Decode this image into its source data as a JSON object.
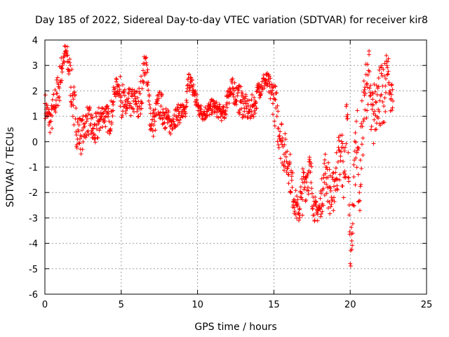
{
  "chart_data": {
    "type": "scatter",
    "title": "Day 185 of 2022, Sidereal Day-to-day VTEC variation (SDTVAR) for receiver kir8",
    "xlabel": "GPS time / hours",
    "ylabel": "SDTVAR / TECUs",
    "xlim": [
      0,
      25
    ],
    "ylim": [
      -6,
      4
    ],
    "xticks": [
      0,
      5,
      10,
      15,
      20,
      25
    ],
    "yticks": [
      -6,
      -5,
      -4,
      -3,
      -2,
      -1,
      0,
      1,
      2,
      3,
      4
    ],
    "grid": true,
    "marker": "+",
    "color": "#ff0000",
    "series": [
      {
        "name": "SDTVAR",
        "x": [
          0.0,
          0.2,
          0.4,
          0.6,
          0.8,
          1.0,
          1.2,
          1.4,
          1.6,
          1.8,
          2.0,
          2.2,
          2.4,
          2.6,
          2.8,
          3.0,
          3.2,
          3.4,
          3.6,
          3.8,
          4.0,
          4.2,
          4.4,
          4.6,
          4.8,
          5.0,
          5.2,
          5.4,
          5.6,
          5.8,
          6.0,
          6.2,
          6.4,
          6.6,
          6.8,
          7.0,
          7.2,
          7.4,
          7.6,
          7.8,
          8.0,
          8.2,
          8.4,
          8.6,
          8.8,
          9.0,
          9.2,
          9.4,
          9.6,
          9.8,
          10.0,
          10.2,
          10.4,
          10.6,
          10.8,
          11.0,
          11.2,
          11.4,
          11.6,
          11.8,
          12.0,
          12.2,
          12.4,
          12.6,
          12.8,
          13.0,
          13.2,
          13.4,
          13.6,
          13.8,
          14.0,
          14.2,
          14.4,
          14.6,
          14.8,
          15.0,
          15.2,
          15.4,
          15.6,
          15.8,
          16.0,
          16.2,
          16.4,
          16.6,
          16.8,
          17.0,
          17.2,
          17.4,
          17.6,
          17.8,
          18.0,
          18.2,
          18.4,
          18.6,
          18.8,
          19.0,
          19.2,
          19.4,
          19.6,
          19.8,
          20.0,
          20.2,
          20.4,
          20.6,
          20.8,
          21.0,
          21.2,
          21.4,
          21.6,
          21.8,
          22.0,
          22.2,
          22.4,
          22.6,
          22.8
        ],
        "y": [
          1.5,
          1.0,
          0.8,
          1.4,
          1.9,
          2.4,
          3.3,
          3.5,
          2.8,
          1.8,
          0.9,
          0.4,
          0.2,
          0.6,
          0.9,
          0.7,
          0.3,
          0.5,
          0.9,
          1.1,
          1.0,
          0.8,
          1.2,
          2.1,
          2.2,
          1.8,
          1.4,
          1.3,
          1.5,
          1.6,
          1.5,
          1.4,
          2.4,
          3.3,
          1.6,
          0.7,
          0.8,
          1.5,
          1.4,
          1.1,
          0.9,
          0.6,
          0.9,
          1.0,
          1.1,
          1.2,
          1.0,
          2.5,
          2.2,
          1.9,
          1.4,
          1.2,
          1.1,
          1.2,
          1.3,
          1.4,
          1.3,
          1.2,
          1.1,
          1.1,
          2.0,
          1.9,
          2.0,
          1.8,
          1.6,
          1.5,
          1.3,
          1.2,
          1.4,
          1.5,
          2.1,
          2.2,
          2.4,
          2.3,
          2.0,
          1.7,
          1.0,
          0.4,
          -0.2,
          -0.6,
          -0.9,
          -1.8,
          -2.4,
          -2.8,
          -2.2,
          -1.6,
          -1.3,
          -1.2,
          -2.5,
          -2.8,
          -2.6,
          -1.9,
          -1.0,
          -1.8,
          -2.3,
          -1.5,
          -0.8,
          -0.4,
          -1.4,
          0.9,
          -4.8,
          -2.5,
          0.8,
          -2.0,
          0.6,
          1.9,
          2.8,
          0.6,
          1.2,
          2.1,
          1.8,
          1.4,
          3.0,
          2.0,
          1.6
        ],
        "y_spread": [
          0.5,
          0.5,
          0.6,
          0.7,
          0.7,
          0.8,
          0.5,
          0.4,
          0.8,
          0.9,
          1.0,
          0.8,
          0.7,
          0.6,
          0.6,
          0.6,
          0.7,
          0.7,
          0.6,
          0.5,
          0.5,
          0.6,
          0.6,
          0.4,
          0.3,
          0.8,
          0.7,
          0.8,
          0.6,
          0.5,
          0.6,
          0.9,
          0.7,
          0.4,
          0.9,
          0.6,
          0.6,
          0.5,
          0.6,
          0.6,
          0.5,
          0.4,
          0.4,
          0.4,
          0.4,
          0.4,
          0.3,
          0.3,
          0.4,
          0.5,
          0.4,
          0.3,
          0.3,
          0.3,
          0.3,
          0.3,
          0.3,
          0.3,
          0.3,
          0.3,
          0.5,
          0.6,
          0.5,
          0.6,
          0.6,
          0.6,
          0.5,
          0.4,
          0.5,
          0.4,
          0.4,
          0.4,
          0.4,
          0.4,
          0.6,
          0.8,
          1.0,
          1.0,
          0.9,
          0.8,
          0.8,
          0.8,
          0.6,
          0.5,
          0.9,
          0.9,
          0.8,
          0.9,
          0.6,
          0.4,
          0.5,
          0.8,
          0.9,
          1.0,
          0.8,
          1.0,
          1.1,
          1.0,
          1.3,
          1.5,
          0.6,
          1.4,
          1.4,
          1.4,
          1.5,
          1.3,
          1.2,
          1.4,
          1.3,
          1.2,
          1.4,
          1.4,
          0.8,
          0.8,
          0.6
        ]
      }
    ]
  }
}
